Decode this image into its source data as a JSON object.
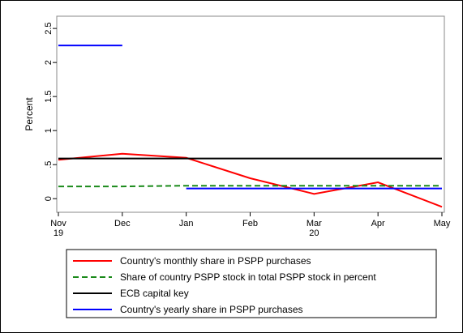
{
  "chart_data": {
    "type": "line",
    "y_label": "Percent",
    "categories": [
      "Nov 19",
      "Dec",
      "Jan",
      "Feb",
      "Mar 20",
      "Apr",
      "May"
    ],
    "ylim": [
      -0.2,
      2.68
    ],
    "yticks": [
      0,
      {
        "value": 0.5,
        "label": ".5"
      },
      1,
      1.5,
      2,
      2.5
    ],
    "series": [
      {
        "name": "Country's monthly share in PSPP purchases",
        "color": "#ff0000",
        "dash": "solid",
        "values": [
          0.57,
          0.66,
          0.6,
          0.3,
          0.07,
          0.24,
          -0.12
        ]
      },
      {
        "name": "Share of country PSPP stock in total PSPP stock in percent",
        "color": "#1a8a1a",
        "dash": "dashed",
        "values": [
          0.18,
          0.18,
          0.19,
          0.19,
          0.19,
          0.19,
          0.19
        ]
      },
      {
        "name": "ECB capital key",
        "color": "#000000",
        "dash": "solid",
        "values": [
          0.59,
          0.59,
          0.59,
          0.59,
          0.59,
          0.59,
          0.59
        ]
      },
      {
        "name": "Country's yearly share in PSPP purchases",
        "color": "#0000ff",
        "dash": "solid",
        "values": [
          2.25,
          2.25,
          0.15,
          0.15,
          0.15,
          0.15,
          0.15
        ],
        "breaks": [
          2
        ]
      }
    ]
  }
}
